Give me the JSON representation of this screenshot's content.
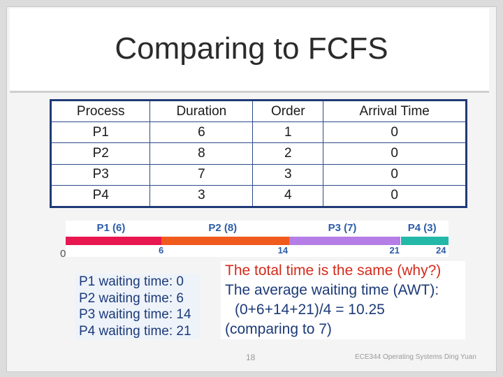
{
  "slide": {
    "title": "Comparing to FCFS",
    "table": {
      "headers": [
        "Process",
        "Duration",
        "Order",
        "Arrival Time"
      ],
      "rows": [
        [
          "P1",
          "6",
          "1",
          "0"
        ],
        [
          "P2",
          "8",
          "2",
          "0"
        ],
        [
          "P3",
          "7",
          "3",
          "0"
        ],
        [
          "P4",
          "3",
          "4",
          "0"
        ]
      ]
    },
    "gantt": {
      "start": "0",
      "segments": [
        {
          "label": "P1 (6)",
          "start": 0,
          "end": 6,
          "end_label": "6",
          "color": "#e8174f"
        },
        {
          "label": "P2 (8)",
          "start": 6,
          "end": 14,
          "end_label": "14",
          "color": "#f05a1c"
        },
        {
          "label": "P3 (7)",
          "start": 14,
          "end": 21,
          "end_label": "21",
          "color": "#b47ee6"
        },
        {
          "label": "P4 (3)",
          "start": 21,
          "end": 24,
          "end_label": "24",
          "color": "#23b8a8"
        }
      ]
    },
    "waiting_times": [
      "P1 waiting time: 0",
      "P2 waiting time: 6",
      "P3 waiting time: 14",
      "P4 waiting time: 21"
    ],
    "question": "The total time is the same (why?)",
    "awt_label": "The average waiting time (AWT):",
    "awt_formula": "(0+6+14+21)/4 = 10.25",
    "comparison": "(comparing to 7)",
    "page_number": "18",
    "footer": "ECE344 Operating Systems Ding Yuan"
  }
}
